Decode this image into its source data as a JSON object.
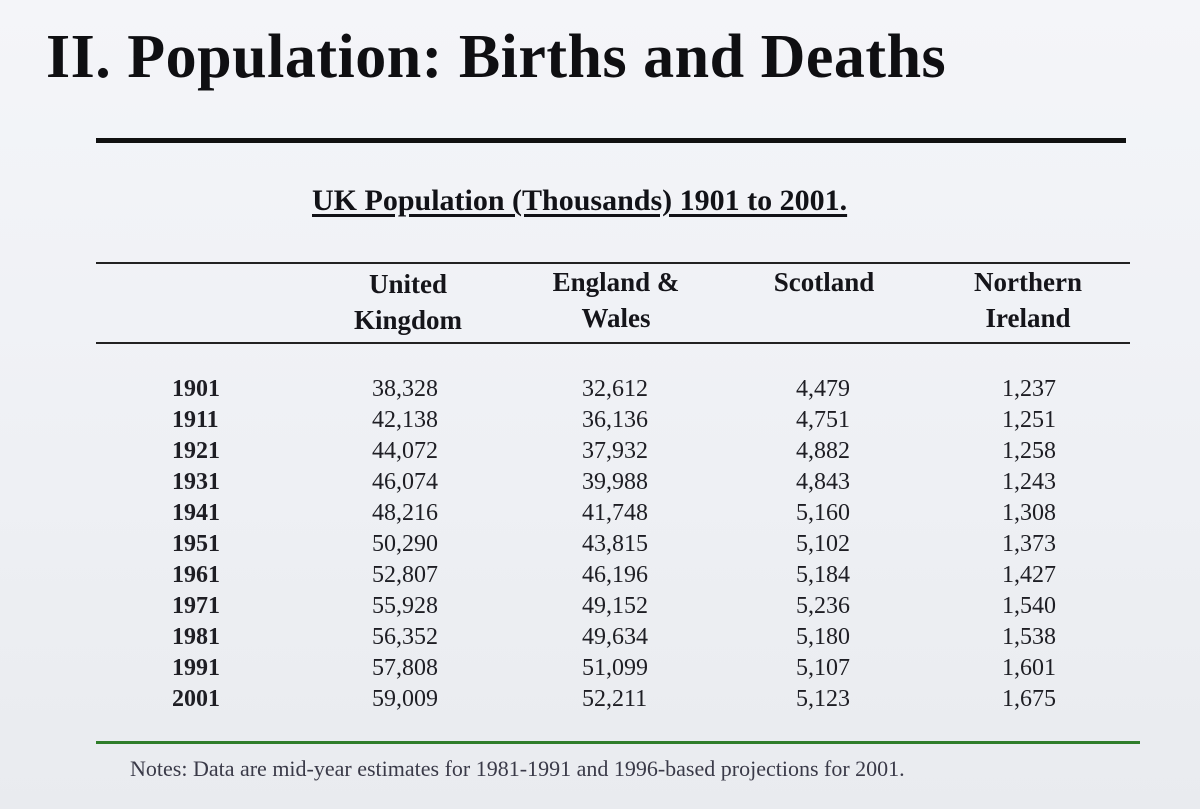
{
  "slide": {
    "title": "II. Population: Births and Deaths"
  },
  "table": {
    "caption": "UK Population (Thousands) 1901 to 2001.",
    "headers": {
      "uk": "United\nKingdom",
      "ew": "England &\nWales",
      "sc": "Scotland",
      "ni": "Northern\nIreland"
    },
    "rows": [
      {
        "year": "1901",
        "uk": "38,328",
        "ew": "32,612",
        "sc": "4,479",
        "ni": "1,237"
      },
      {
        "year": "1911",
        "uk": "42,138",
        "ew": "36,136",
        "sc": "4,751",
        "ni": "1,251"
      },
      {
        "year": "1921",
        "uk": "44,072",
        "ew": "37,932",
        "sc": "4,882",
        "ni": "1,258"
      },
      {
        "year": "1931",
        "uk": "46,074",
        "ew": "39,988",
        "sc": "4,843",
        "ni": "1,243"
      },
      {
        "year": "1941",
        "uk": "48,216",
        "ew": "41,748",
        "sc": "5,160",
        "ni": "1,308"
      },
      {
        "year": "1951",
        "uk": "50,290",
        "ew": "43,815",
        "sc": "5,102",
        "ni": "1,373"
      },
      {
        "year": "1961",
        "uk": "52,807",
        "ew": "46,196",
        "sc": "5,184",
        "ni": "1,427"
      },
      {
        "year": "1971",
        "uk": "55,928",
        "ew": "49,152",
        "sc": "5,236",
        "ni": "1,540"
      },
      {
        "year": "1981",
        "uk": "56,352",
        "ew": "49,634",
        "sc": "5,180",
        "ni": "1,538"
      },
      {
        "year": "1991",
        "uk": "57,808",
        "ew": "51,099",
        "sc": "5,107",
        "ni": "1,601"
      },
      {
        "year": "2001",
        "uk": "59,009",
        "ew": "52,211",
        "sc": "5,123",
        "ni": "1,675"
      }
    ]
  },
  "notes": "Notes: Data are mid-year estimates for 1981-1991 and 1996-based projections for 2001.",
  "colors": {
    "title_rule": "#111111",
    "notes_rule": "#2f7d2a"
  }
}
